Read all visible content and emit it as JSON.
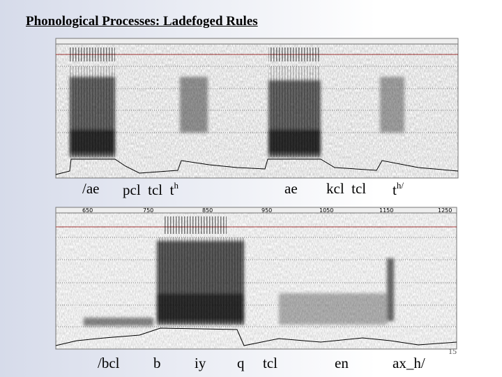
{
  "title": "Phonological Processes: Ladefoged Rules",
  "top_labels": [
    {
      "text": "/ae"
    },
    {
      "text": "pcl  tcl  t",
      "sup": "h"
    },
    {
      "text": "ae"
    },
    {
      "text": "kcl  tcl"
    },
    {
      "text": "t",
      "sup": "h/"
    }
  ],
  "bottom_time_marks": [
    "650",
    "750",
    "850",
    "950",
    "1050",
    "1150",
    "1250"
  ],
  "bottom_labels": [
    "/bcl",
    "b",
    "iy",
    "q",
    "tcl",
    "en",
    "ax_h/"
  ],
  "page_number": "15"
}
